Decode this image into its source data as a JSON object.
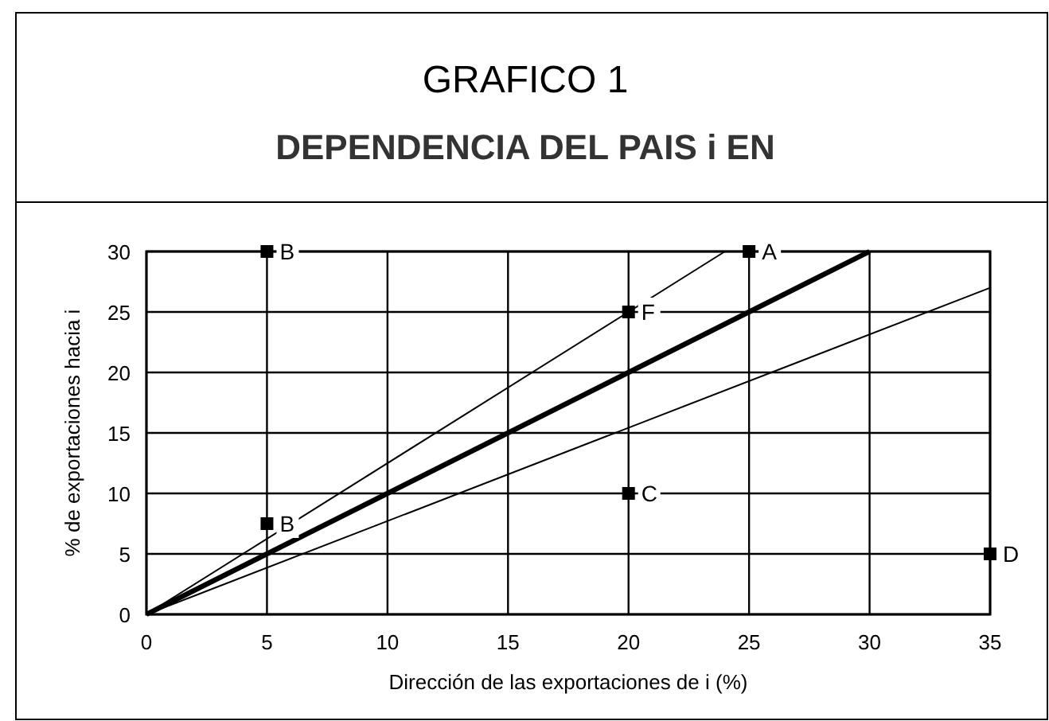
{
  "chart_data": {
    "type": "line",
    "title": "GRAFICO 1",
    "subtitle": "DEPENDENCIA DEL PAIS i EN",
    "xlabel": "Dirección de las exportaciones de i (%)",
    "ylabel": "% de exportaciones hacia i",
    "xlim": [
      0,
      35
    ],
    "ylim": [
      0,
      30
    ],
    "xticks": [
      0,
      5,
      10,
      15,
      20,
      25,
      30,
      35
    ],
    "yticks": [
      0,
      5,
      10,
      15,
      20,
      25,
      30
    ],
    "grid": true,
    "series": [
      {
        "color": "#000000",
        "x": [
          0,
          30
        ],
        "values": [
          0,
          30
        ],
        "line_style": "solid",
        "marker": "none"
      },
      {
        "color": "#000000",
        "x": [
          0,
          24
        ],
        "values": [
          0,
          30
        ],
        "line_style": "solid",
        "marker": "none"
      },
      {
        "color": "#000000",
        "x": [
          0,
          35
        ],
        "values": [
          0,
          27
        ],
        "line_style": "solid",
        "marker": "none"
      },
      {
        "type": "scatter",
        "color": "#000000",
        "x": [
          5,
          5,
          25,
          20,
          20,
          35
        ],
        "values": [
          30,
          7.5,
          30,
          25,
          10,
          5
        ],
        "marker": "square"
      }
    ],
    "annotations": [
      {
        "text": "B",
        "x": 5,
        "y": 30
      },
      {
        "text": "B",
        "x": 5,
        "y": 7.5
      },
      {
        "text": "A",
        "x": 25,
        "y": 30
      },
      {
        "text": "F",
        "x": 20,
        "y": 25
      },
      {
        "text": "C",
        "x": 20,
        "y": 10
      },
      {
        "text": "D",
        "x": 35,
        "y": 5
      }
    ]
  }
}
